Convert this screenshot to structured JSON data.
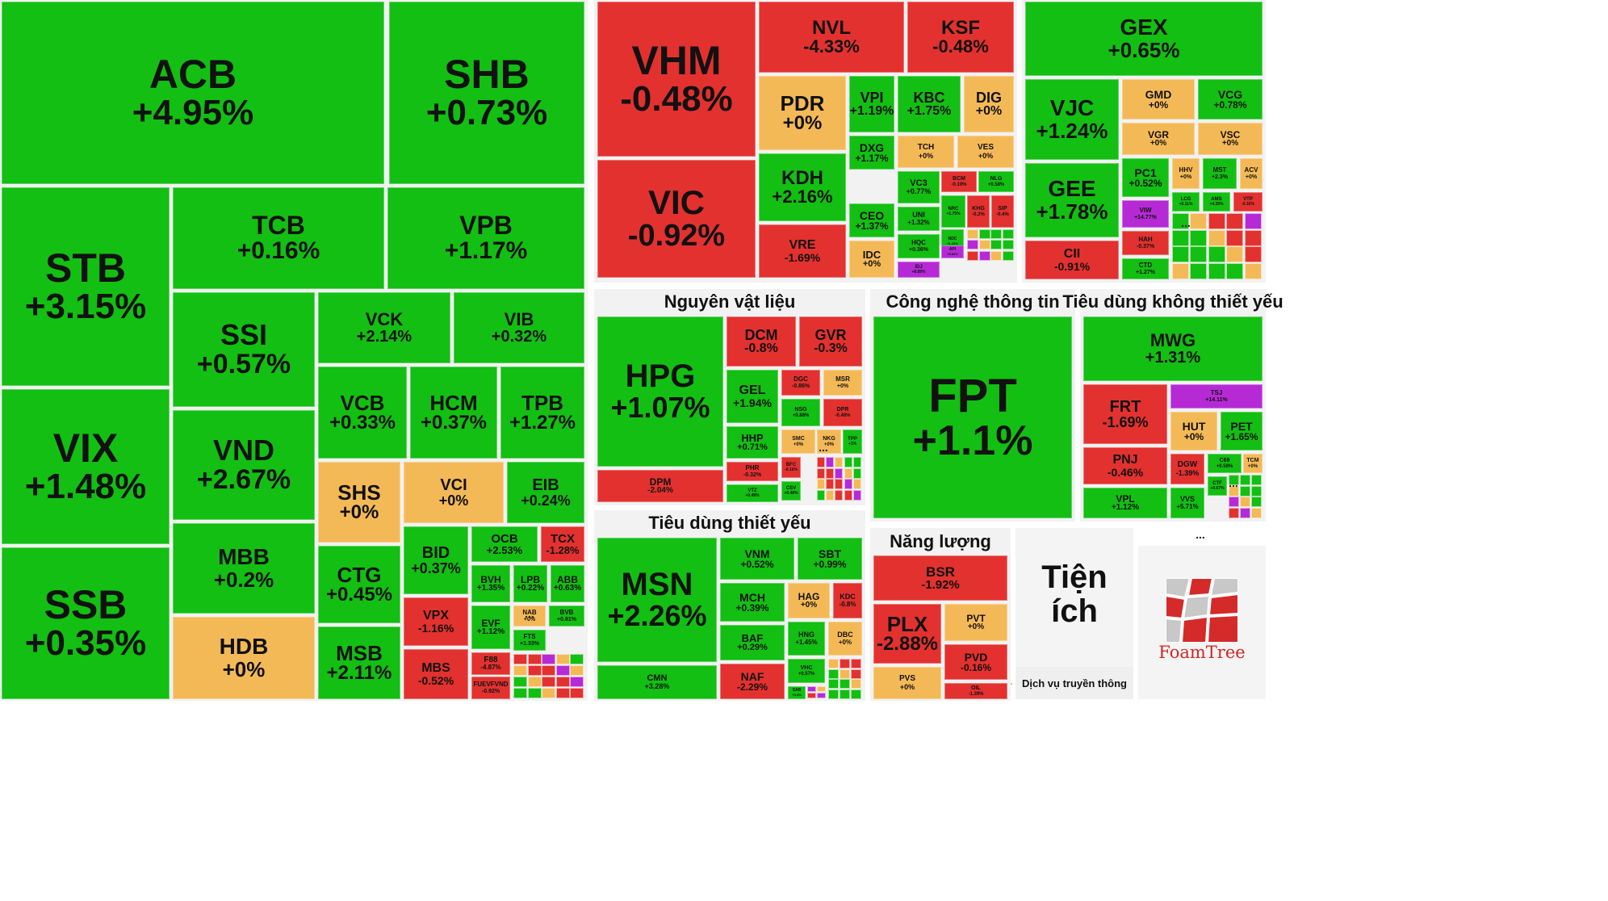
{
  "colors": {
    "up": "#12bf12",
    "up_light": "#1ed81e",
    "down": "#e3312f",
    "flat": "#f4b957",
    "ceiling": "#b62ad6",
    "panel": "#f2f2f2"
  },
  "chart_data": {
    "type": "treemap",
    "sectors": [
      {
        "name": "",
        "stocks": [
          {
            "ticker": "ACB",
            "change": "+4.95%"
          },
          {
            "ticker": "SHB",
            "change": "+0.73%"
          },
          {
            "ticker": "STB",
            "change": "+3.15%"
          },
          {
            "ticker": "TCB",
            "change": "+0.16%"
          },
          {
            "ticker": "VPB",
            "change": "+1.17%"
          },
          {
            "ticker": "SSI",
            "change": "+0.57%"
          },
          {
            "ticker": "VCK",
            "change": "+2.14%"
          },
          {
            "ticker": "VIB",
            "change": "+0.32%"
          },
          {
            "ticker": "VIX",
            "change": "+1.48%"
          },
          {
            "ticker": "VND",
            "change": "+2.67%"
          },
          {
            "ticker": "VCB",
            "change": "+0.33%"
          },
          {
            "ticker": "HCM",
            "change": "+0.37%"
          },
          {
            "ticker": "TPB",
            "change": "+1.27%"
          },
          {
            "ticker": "SHS",
            "change": "+0%"
          },
          {
            "ticker": "VCI",
            "change": "+0%"
          },
          {
            "ticker": "EIB",
            "change": "+0.24%"
          },
          {
            "ticker": "MBB",
            "change": "+0.2%"
          },
          {
            "ticker": "SSB",
            "change": "+0.35%"
          },
          {
            "ticker": "CTG",
            "change": "+0.45%"
          },
          {
            "ticker": "BID",
            "change": "+0.37%"
          },
          {
            "ticker": "OCB",
            "change": "+2.53%"
          },
          {
            "ticker": "TCX",
            "change": "-1.28%"
          },
          {
            "ticker": "BVH",
            "change": "+1.35%"
          },
          {
            "ticker": "LPB",
            "change": "+0.22%"
          },
          {
            "ticker": "ABB",
            "change": "+0.63%"
          },
          {
            "ticker": "HDB",
            "change": "+0%"
          },
          {
            "ticker": "MSB",
            "change": "+2.11%"
          },
          {
            "ticker": "VPX",
            "change": "-1.16%"
          },
          {
            "ticker": "EVF",
            "change": "+1.12%"
          },
          {
            "ticker": "NAB",
            "change": "+0%"
          },
          {
            "ticker": "BVB",
            "change": "+0.81%"
          },
          {
            "ticker": "FTS",
            "change": "+1.33%"
          },
          {
            "ticker": "MBS",
            "change": "-0.52%"
          },
          {
            "ticker": "F88",
            "change": "-4.87%"
          },
          {
            "ticker": "FUEVFVND",
            "change": "-0.92%"
          }
        ]
      },
      {
        "name": "",
        "stocks": [
          {
            "ticker": "VHM",
            "change": "-0.48%"
          },
          {
            "ticker": "VIC",
            "change": "-0.92%"
          },
          {
            "ticker": "NVL",
            "change": "-4.33%"
          },
          {
            "ticker": "KSF",
            "change": "-0.48%"
          },
          {
            "ticker": "PDR",
            "change": "+0%"
          },
          {
            "ticker": "VPI",
            "change": "+1.19%"
          },
          {
            "ticker": "KBC",
            "change": "+1.75%"
          },
          {
            "ticker": "DIG",
            "change": "+0%"
          },
          {
            "ticker": "KDH",
            "change": "+2.16%"
          },
          {
            "ticker": "DXG",
            "change": "+1.17%"
          },
          {
            "ticker": "TCH",
            "change": "+0%"
          },
          {
            "ticker": "VES",
            "change": "+0%"
          },
          {
            "ticker": "VC3",
            "change": "+0.77%"
          },
          {
            "ticker": "BCM",
            "change": "-0.19%"
          },
          {
            "ticker": "NLG",
            "change": "+0.58%"
          },
          {
            "ticker": "CEO",
            "change": "+1.37%"
          },
          {
            "ticker": "UNI",
            "change": "+1.32%"
          },
          {
            "ticker": "NRC",
            "change": "+1.75%"
          },
          {
            "ticker": "KHG",
            "change": "-0.2%"
          },
          {
            "ticker": "SIP",
            "change": "-0.4%"
          },
          {
            "ticker": "HQC",
            "change": "+0.36%"
          },
          {
            "ticker": "NDC",
            "change": "+1.13%"
          },
          {
            "ticker": "VRE",
            "change": "-1.69%"
          },
          {
            "ticker": "IDC",
            "change": "+0%"
          },
          {
            "ticker": "IDJ",
            "change": "+8.89%"
          },
          {
            "ticker": "API",
            "change": "+9.84%"
          }
        ]
      },
      {
        "name": "",
        "stocks": [
          {
            "ticker": "GEX",
            "change": "+0.65%"
          },
          {
            "ticker": "VJC",
            "change": "+1.24%"
          },
          {
            "ticker": "GMD",
            "change": "+0%"
          },
          {
            "ticker": "VCG",
            "change": "+0.78%"
          },
          {
            "ticker": "VGR",
            "change": "+0%"
          },
          {
            "ticker": "VSC",
            "change": "+0%"
          },
          {
            "ticker": "GEE",
            "change": "+1.78%"
          },
          {
            "ticker": "PC1",
            "change": "+0.52%"
          },
          {
            "ticker": "HHV",
            "change": "+0%"
          },
          {
            "ticker": "MST",
            "change": "+2.3%"
          },
          {
            "ticker": "ACV",
            "change": "+0%"
          },
          {
            "ticker": "LCG",
            "change": "+0.11%"
          },
          {
            "ticker": "AMS",
            "change": "+4.35%"
          },
          {
            "ticker": "VTP",
            "change": "-0.16%"
          },
          {
            "ticker": "VIW",
            "change": "+14.77%"
          },
          {
            "ticker": "HAH",
            "change": "-0.37%"
          },
          {
            "ticker": "CII",
            "change": "-0.91%"
          },
          {
            "ticker": "CTD",
            "change": "+1.27%"
          }
        ]
      },
      {
        "name": "Nguyên vật liệu",
        "stocks": [
          {
            "ticker": "HPG",
            "change": "+1.07%"
          },
          {
            "ticker": "DCM",
            "change": "-0.8%"
          },
          {
            "ticker": "GVR",
            "change": "-0.3%"
          },
          {
            "ticker": "GEL",
            "change": "+1.94%"
          },
          {
            "ticker": "DGC",
            "change": "-0.86%"
          },
          {
            "ticker": "MSR",
            "change": "+0%"
          },
          {
            "ticker": "NSG",
            "change": "+0.88%"
          },
          {
            "ticker": "DPR",
            "change": "-0.48%"
          },
          {
            "ticker": "HHP",
            "change": "+0.71%"
          },
          {
            "ticker": "SMC",
            "change": "+0%"
          },
          {
            "ticker": "NKG",
            "change": "+0%"
          },
          {
            "ticker": "TPP",
            "change": "+1%"
          },
          {
            "ticker": "BFC",
            "change": "-0.16%"
          },
          {
            "ticker": "PHR",
            "change": "-0.32%"
          },
          {
            "ticker": "CSV",
            "change": "+0.48%"
          },
          {
            "ticker": "DPM",
            "change": "-2.04%"
          },
          {
            "ticker": "VTZ",
            "change": "+0.48%"
          }
        ]
      },
      {
        "name": "Công nghệ thông tin",
        "stocks": [
          {
            "ticker": "FPT",
            "change": "+1.1%"
          }
        ]
      },
      {
        "name": "Tiêu dùng không thiết yếu",
        "stocks": [
          {
            "ticker": "MWG",
            "change": "+1.31%"
          },
          {
            "ticker": "TSJ",
            "change": "+14.11%"
          },
          {
            "ticker": "FRT",
            "change": "-1.69%"
          },
          {
            "ticker": "HUT",
            "change": "+0%"
          },
          {
            "ticker": "PET",
            "change": "+1.65%"
          },
          {
            "ticker": "PNJ",
            "change": "-0.46%"
          },
          {
            "ticker": "DGW",
            "change": "-1.39%"
          },
          {
            "ticker": "C69",
            "change": "+0.58%"
          },
          {
            "ticker": "TCM",
            "change": "+0%"
          },
          {
            "ticker": "CTF",
            "change": "+0.67%"
          },
          {
            "ticker": "VPL",
            "change": "+1.12%"
          },
          {
            "ticker": "VVS",
            "change": "+5.71%"
          }
        ]
      },
      {
        "name": "Tiêu dùng thiết yếu",
        "stocks": [
          {
            "ticker": "MSN",
            "change": "+2.26%"
          },
          {
            "ticker": "VNM",
            "change": "+0.52%"
          },
          {
            "ticker": "SBT",
            "change": "+0.99%"
          },
          {
            "ticker": "MCH",
            "change": "+0.39%"
          },
          {
            "ticker": "HAG",
            "change": "+0%"
          },
          {
            "ticker": "KDC",
            "change": "-0.8%"
          },
          {
            "ticker": "BAF",
            "change": "+0.29%"
          },
          {
            "ticker": "HNG",
            "change": "+1.45%"
          },
          {
            "ticker": "DBC",
            "change": "+0%"
          },
          {
            "ticker": "VHC",
            "change": "+0.57%"
          },
          {
            "ticker": "NAF",
            "change": "-2.29%"
          },
          {
            "ticker": "SAB",
            "change": "+0.3%"
          },
          {
            "ticker": "CMN",
            "change": "+3.28%"
          }
        ]
      },
      {
        "name": "Năng lượng",
        "stocks": [
          {
            "ticker": "BSR",
            "change": "-1.92%"
          },
          {
            "ticker": "PLX",
            "change": "-2.88%"
          },
          {
            "ticker": "PVT",
            "change": "+0%"
          },
          {
            "ticker": "PVD",
            "change": "-0.16%"
          },
          {
            "ticker": "PVS",
            "change": "+0%"
          },
          {
            "ticker": "OIL",
            "change": "-1.39%"
          }
        ]
      }
    ]
  },
  "utilities": {
    "title_line1": "Tiện",
    "title_line2": "ích",
    "sub_label": "Dịch vụ truyền thông"
  },
  "more_label": "...",
  "brand": {
    "name": "FoamTree"
  }
}
